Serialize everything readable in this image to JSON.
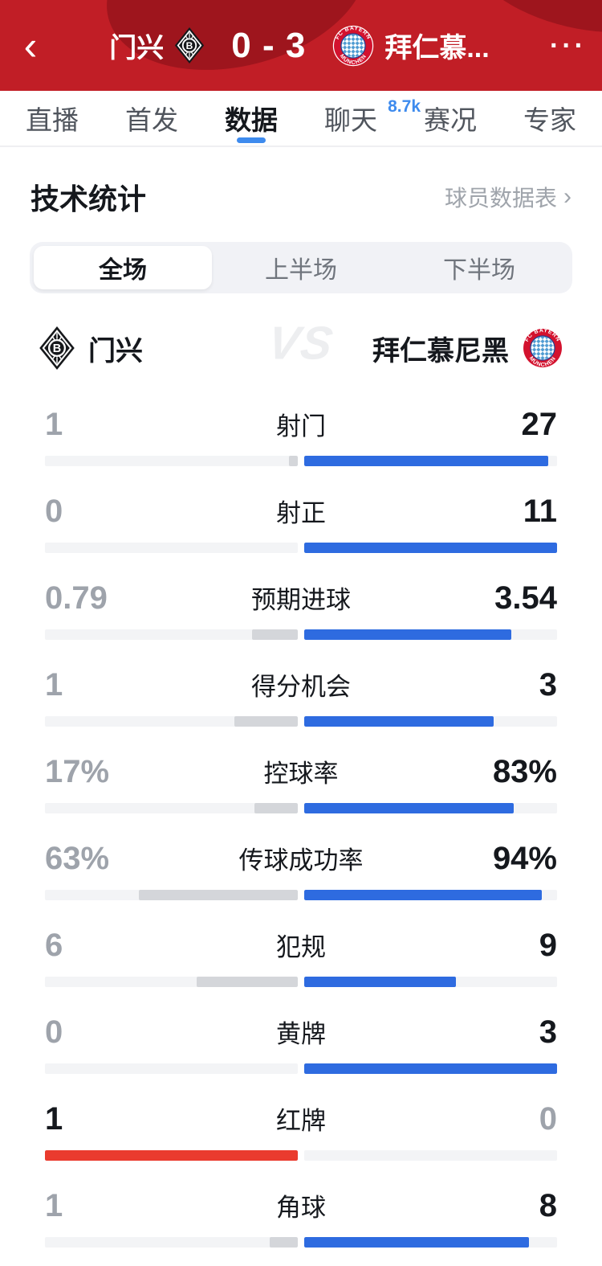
{
  "header": {
    "back_icon": "‹",
    "more_icon": "···",
    "home_name": "门兴",
    "score": "0 - 3",
    "away_name": "拜仁慕..."
  },
  "tabs": [
    {
      "label": "直播",
      "active": false
    },
    {
      "label": "首发",
      "active": false
    },
    {
      "label": "数据",
      "active": true
    },
    {
      "label": "聊天",
      "active": false,
      "badge": "8.7k"
    },
    {
      "label": "赛况",
      "active": false
    },
    {
      "label": "专家",
      "active": false
    }
  ],
  "section": {
    "title": "技术统计",
    "link": "球员数据表",
    "chevron": "›"
  },
  "segments": [
    {
      "label": "全场",
      "active": true
    },
    {
      "label": "上半场",
      "active": false
    },
    {
      "label": "下半场",
      "active": false
    }
  ],
  "teams": {
    "home": "门兴",
    "vs": "VS",
    "away": "拜仁慕尼黑"
  },
  "badges": {
    "bmg_letter": "B",
    "bayern_top": "FC BAYERN",
    "bayern_bottom": "MÜNCHEN"
  },
  "stats": {
    "rows": [
      {
        "label": "射门",
        "home": "1",
        "away": "27"
      },
      {
        "label": "射正",
        "home": "0",
        "away": "11"
      },
      {
        "label": "预期进球",
        "home": "0.79",
        "away": "3.54"
      },
      {
        "label": "得分机会",
        "home": "1",
        "away": "3"
      },
      {
        "label": "控球率",
        "home": "17%",
        "away": "83%"
      },
      {
        "label": "传球成功率",
        "home": "63%",
        "away": "94%"
      },
      {
        "label": "犯规",
        "home": "6",
        "away": "9"
      },
      {
        "label": "黄牌",
        "home": "0",
        "away": "3"
      },
      {
        "label": "红牌",
        "home": "1",
        "away": "0",
        "home_bar": "red"
      },
      {
        "label": "角球",
        "home": "1",
        "away": "8"
      }
    ]
  },
  "colors": {
    "header_red": "#C11E26",
    "header_dark": "#9E151D",
    "away_bar_blue": "#2E6BE0",
    "tab_accent_blue": "#3E8BEE",
    "red_card_bar": "#EA3B2E",
    "home_bar_gray": "#D4D6DA",
    "winner_text": "#15181D",
    "loser_text": "#9EA3AB"
  }
}
